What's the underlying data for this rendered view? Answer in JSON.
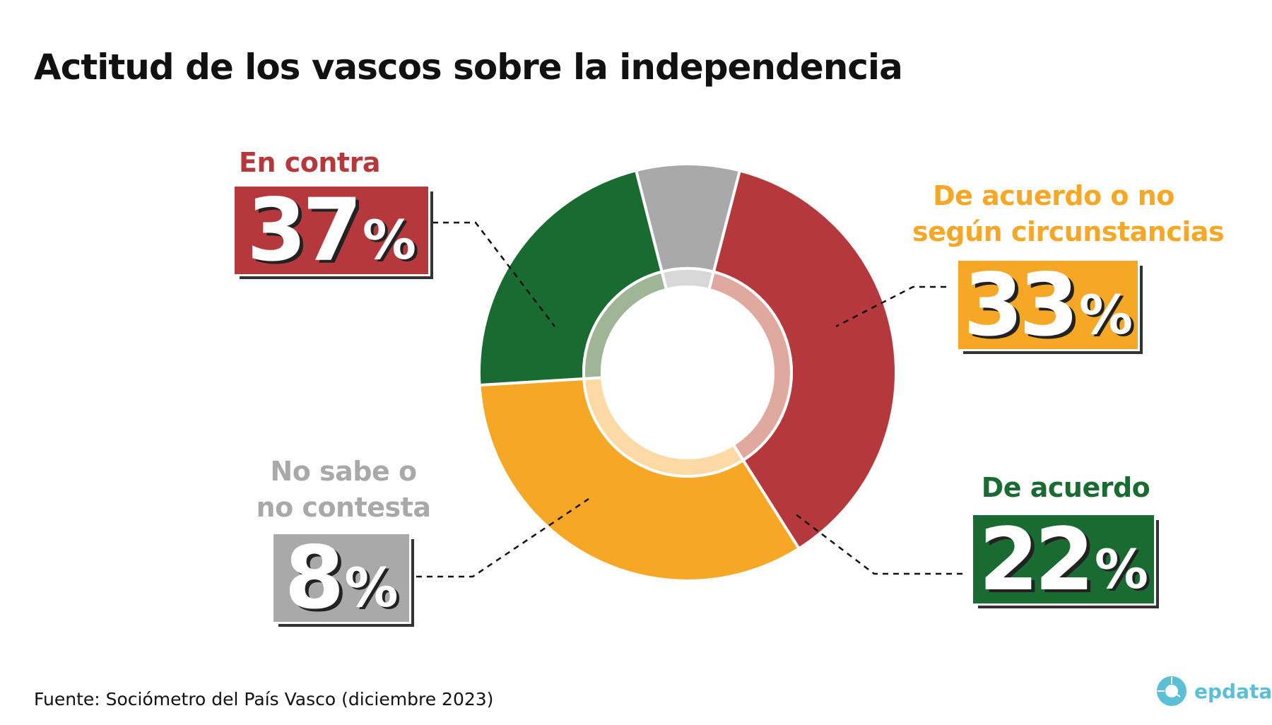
{
  "chart_data": {
    "type": "pie",
    "title": "Actitud de los vascos sobre la independencia",
    "categories": [
      "En contra",
      "De acuerdo o no según circunstancias",
      "De acuerdo",
      "No sabe o no contesta"
    ],
    "values": [
      37,
      33,
      22,
      8
    ],
    "unit": "%",
    "donut": true,
    "colors": [
      "#b5383c",
      "#f6a726",
      "#1a6b32",
      "#a9a9aa"
    ],
    "inner_colors": [
      "#e0a99f",
      "#fdd9a5",
      "#9fb596",
      "#d9d8d9"
    ],
    "labels": [
      {
        "lines": [
          "En contra"
        ],
        "value": "37",
        "pct": "%"
      },
      {
        "lines": [
          "De acuerdo o no",
          "según circunstancias"
        ],
        "value": "33",
        "pct": "%"
      },
      {
        "lines": [
          "De acuerdo"
        ],
        "value": "22",
        "pct": "%"
      },
      {
        "lines": [
          "No sabe o",
          "no contesta"
        ],
        "value": "8",
        "pct": "%"
      }
    ]
  },
  "source": "Fuente: Sociómetro del País Vasco (diciembre 2023)",
  "logo": {
    "text": "epdata",
    "icon": "epdata-donut-icon",
    "color": "#5bbfd6"
  }
}
